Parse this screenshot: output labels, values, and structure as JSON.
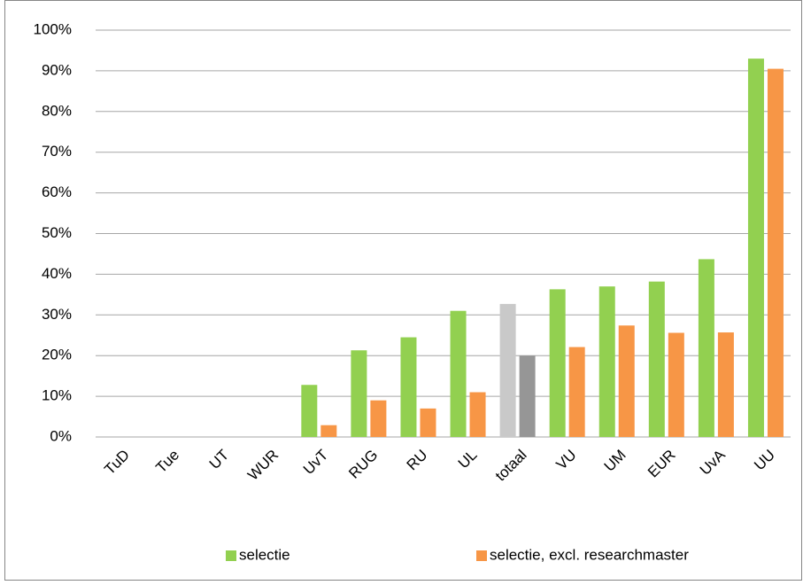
{
  "chart_data": {
    "type": "bar",
    "categories": [
      "TuD",
      "Tue",
      "UT",
      "WUR",
      "UvT",
      "RUG",
      "RU",
      "UL",
      "totaal",
      "VU",
      "UM",
      "EUR",
      "UvA",
      "UU"
    ],
    "series": [
      {
        "name": "selectie",
        "color": "#92d050",
        "point_colors": [
          "#92d050",
          "#92d050",
          "#92d050",
          "#92d050",
          "#92d050",
          "#92d050",
          "#92d050",
          "#92d050",
          "#c9c9c9",
          "#92d050",
          "#92d050",
          "#92d050",
          "#92d050",
          "#92d050"
        ],
        "values": [
          0,
          0,
          0,
          0,
          12.8,
          21.3,
          24.5,
          31,
          32.7,
          36.3,
          37,
          38.2,
          43.7,
          93
        ]
      },
      {
        "name": "selectie, excl. researchmaster",
        "color": "#f79646",
        "point_colors": [
          "#f79646",
          "#f79646",
          "#f79646",
          "#f79646",
          "#f79646",
          "#f79646",
          "#f79646",
          "#f79646",
          "#969696",
          "#f79646",
          "#f79646",
          "#f79646",
          "#f79646",
          "#f79646"
        ],
        "values": [
          0,
          0,
          0,
          0,
          2.9,
          9,
          7,
          11,
          20,
          22.1,
          27.4,
          25.6,
          25.7,
          90.5
        ]
      }
    ],
    "ylim": [
      0,
      100
    ],
    "yticks": [
      {
        "value": 0,
        "label": "0%"
      },
      {
        "value": 10,
        "label": "10%"
      },
      {
        "value": 20,
        "label": "20%"
      },
      {
        "value": 30,
        "label": "30%"
      },
      {
        "value": 40,
        "label": "40%"
      },
      {
        "value": 50,
        "label": "50%"
      },
      {
        "value": 60,
        "label": "60%"
      },
      {
        "value": 70,
        "label": "70%"
      },
      {
        "value": 80,
        "label": "80%"
      },
      {
        "value": 90,
        "label": "90%"
      },
      {
        "value": 100,
        "label": "100%"
      }
    ],
    "grid": true,
    "legend": "bottom"
  }
}
